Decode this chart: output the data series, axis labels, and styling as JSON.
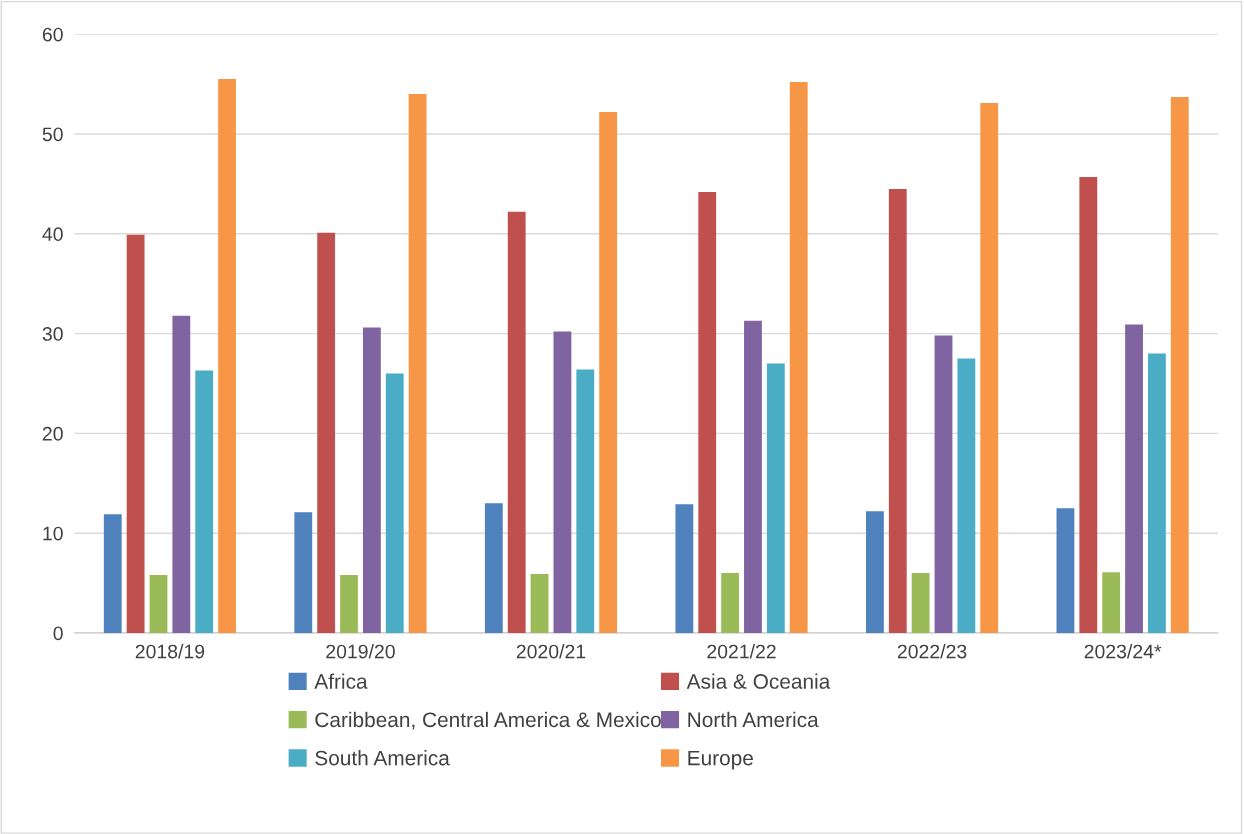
{
  "chart_data": {
    "type": "bar",
    "categories": [
      "2018/19",
      "2019/20",
      "2020/21",
      "2021/22",
      "2022/23",
      "2023/24*"
    ],
    "series": [
      {
        "name": "Africa",
        "color": "#4f81bd",
        "values": [
          11.9,
          12.1,
          13.0,
          12.9,
          12.2,
          12.5
        ]
      },
      {
        "name": "Asia & Oceania",
        "color": "#c0504d",
        "values": [
          39.9,
          40.1,
          42.2,
          44.2,
          44.5,
          45.7
        ]
      },
      {
        "name": "Caribbean, Central America & Mexico",
        "color": "#9bbb59",
        "values": [
          5.8,
          5.8,
          5.9,
          6.0,
          6.0,
          6.1
        ]
      },
      {
        "name": "North America",
        "color": "#8064a2",
        "values": [
          31.8,
          30.6,
          30.2,
          31.3,
          29.8,
          30.9
        ]
      },
      {
        "name": "South America",
        "color": "#4bacc6",
        "values": [
          26.3,
          26.0,
          26.4,
          27.0,
          27.5,
          28.0
        ]
      },
      {
        "name": "Europe",
        "color": "#f79646",
        "values": [
          55.5,
          54.0,
          52.2,
          55.2,
          53.1,
          53.7
        ]
      }
    ],
    "ylim": [
      0,
      60
    ],
    "yticks": [
      0,
      10,
      20,
      30,
      40,
      50,
      60
    ],
    "grid": "y",
    "legend": "bottom"
  }
}
